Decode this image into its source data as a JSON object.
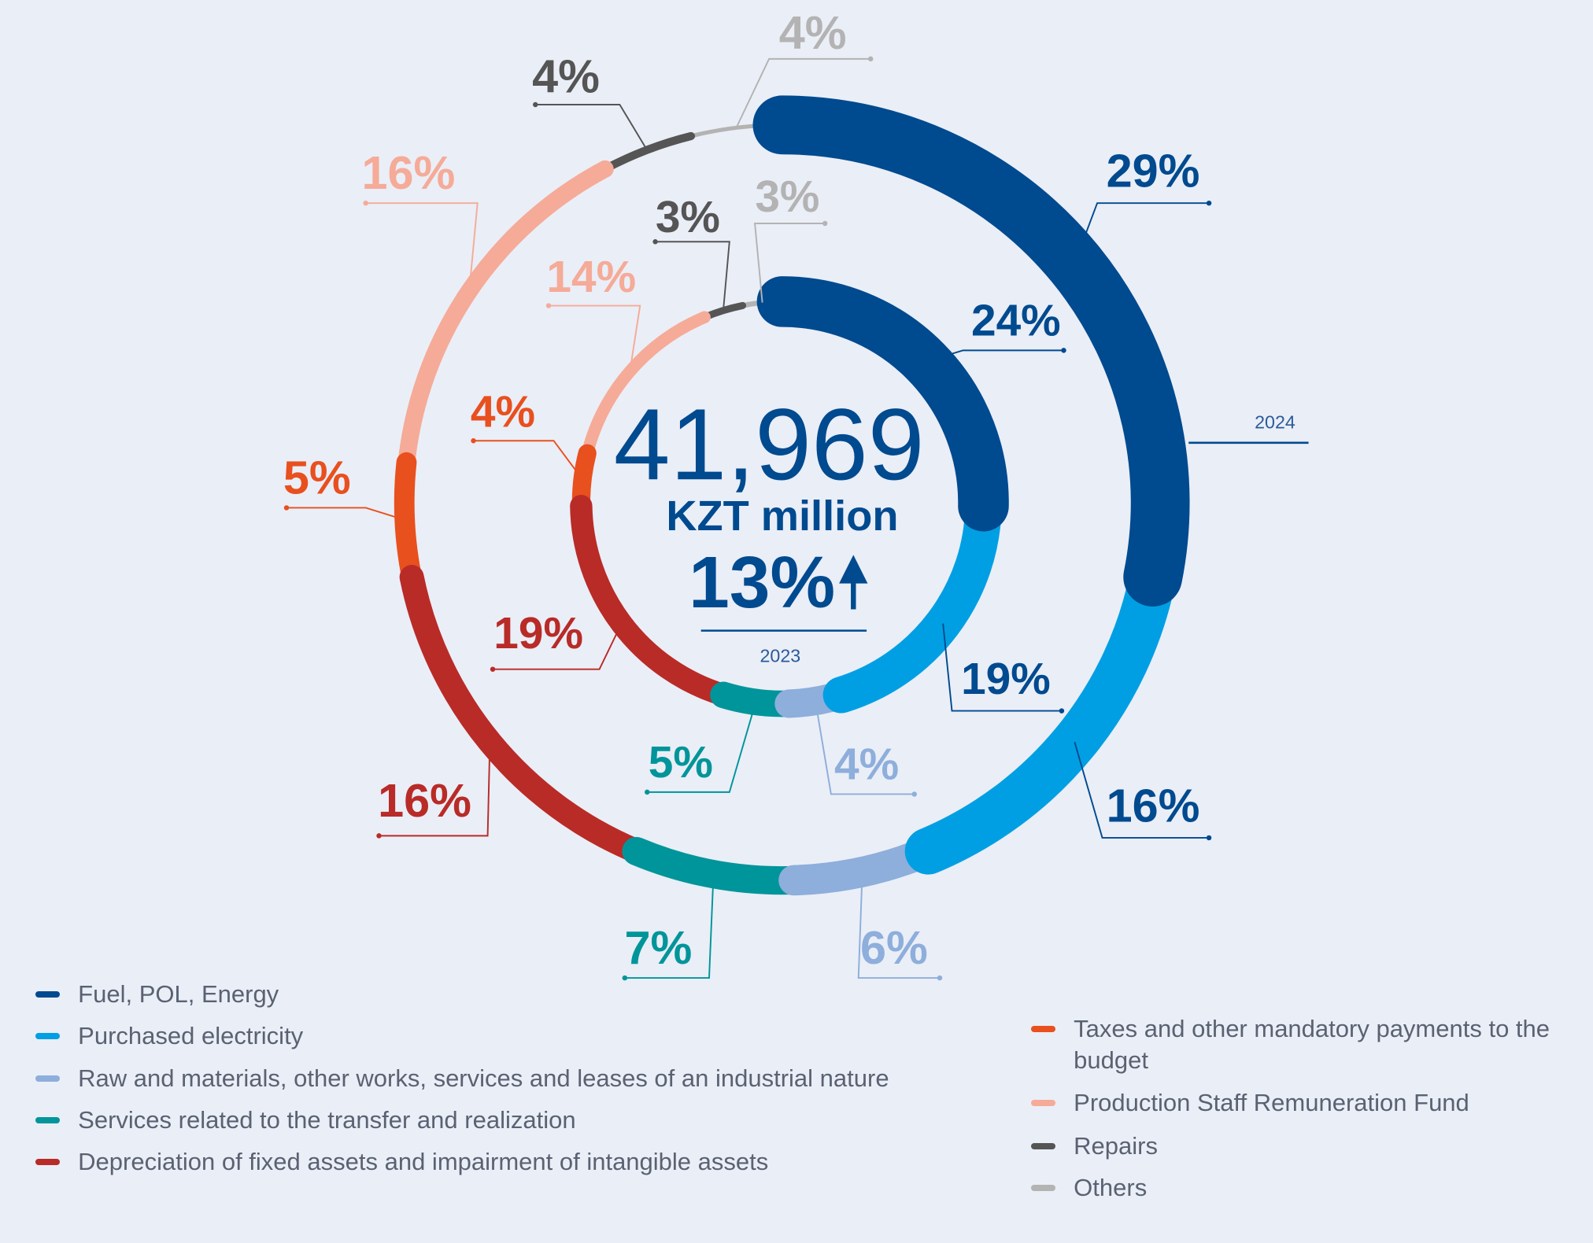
{
  "chart_data": {
    "type": "donut",
    "categories": [
      "Fuel, POL, Energy",
      "Purchased electricity",
      "Raw and materials, other works, services and leases of an industrial nature",
      "Services related to the transfer and realization",
      "Depreciation of fixed assets and impairment of intangible assets",
      "Taxes and other mandatory payments to the budget",
      "Production Staff Remuneration Fund",
      "Repairs",
      "Others"
    ],
    "colors": [
      "#004a8f",
      "#009fe3",
      "#8eaedb",
      "#00959a",
      "#b92b27",
      "#e8501e",
      "#f5ab98",
      "#555555",
      "#b3b3b3"
    ],
    "rings": [
      {
        "name": "2024",
        "values": [
          29,
          16,
          6,
          7,
          16,
          5,
          16,
          4,
          4
        ],
        "value_labels": [
          "29%",
          "16%",
          "6%",
          "7%",
          "16%",
          "5%",
          "16%",
          "4%",
          "4%"
        ]
      },
      {
        "name": "2023",
        "values": [
          24,
          19,
          4,
          5,
          19,
          4,
          14,
          3,
          3
        ],
        "value_labels": [
          "24%",
          "19%",
          "4%",
          "5%",
          "19%",
          "4%",
          "14%",
          "3%",
          "3%"
        ]
      }
    ],
    "center": {
      "total": "41,969",
      "unit": "KZT million",
      "change": "13%"
    }
  }
}
